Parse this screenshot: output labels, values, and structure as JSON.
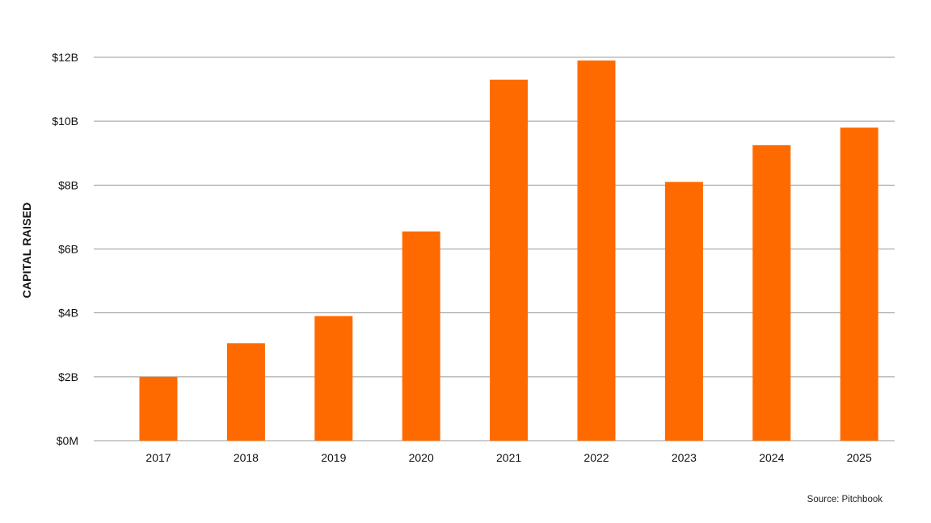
{
  "chart_data": {
    "type": "bar",
    "categories": [
      "2017",
      "2018",
      "2019",
      "2020",
      "2021",
      "2022",
      "2023",
      "2024",
      "2025"
    ],
    "values": [
      2.0,
      3.05,
      3.9,
      6.55,
      11.3,
      11.9,
      8.1,
      9.25,
      9.8
    ],
    "ylabel": "CAPITAL RAISED",
    "ylim": [
      0,
      12
    ],
    "yticks": [
      0,
      2,
      4,
      6,
      8,
      10,
      12
    ],
    "ytick_labels": [
      "$0M",
      "$2B",
      "$4B",
      "$6B",
      "$8B",
      "$10B",
      "$12B"
    ],
    "grid": true,
    "bar_color": "#FF6A00",
    "source": "Source: Pitchbook"
  }
}
